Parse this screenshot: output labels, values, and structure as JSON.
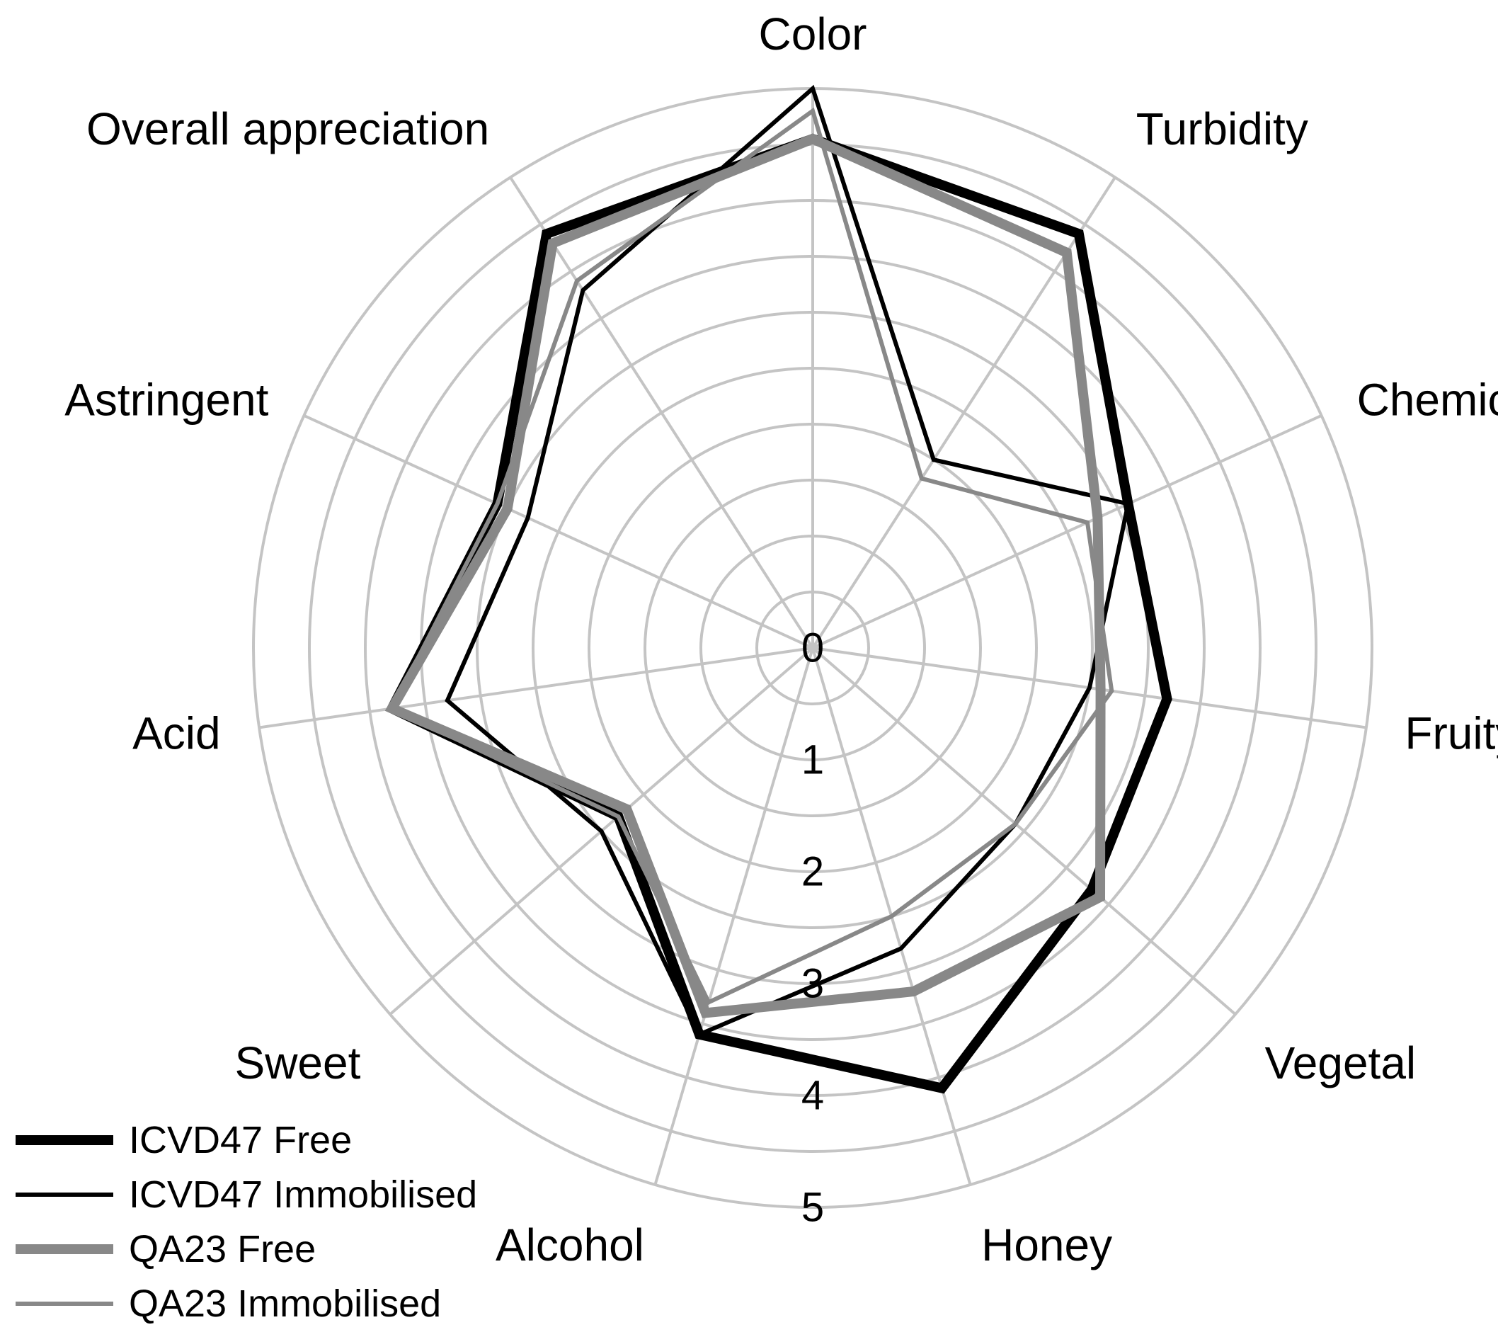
{
  "chart_data": {
    "type": "radar",
    "axes": [
      "Color",
      "Turbidity",
      "Chemical",
      "Fruity",
      "Vegetal",
      "Honey",
      "Alcohol",
      "Sweet",
      "Acid",
      "Astringent",
      "Overall appreciation"
    ],
    "ticks": [
      "0",
      "1",
      "2",
      "3",
      "4",
      "5"
    ],
    "rlim": [
      0,
      5
    ],
    "grid_step": 0.5,
    "grid": true,
    "legend_position": "bottom-left",
    "series": [
      {
        "name": "ICVD47 Free",
        "values": [
          4.55,
          4.4,
          3.1,
          3.2,
          3.3,
          4.1,
          3.6,
          2.3,
          3.8,
          3.1,
          4.4
        ],
        "color": "#000000",
        "line_width": 14
      },
      {
        "name": "ICVD47 Immobilised",
        "values": [
          5.0,
          2.0,
          3.1,
          2.5,
          2.4,
          2.8,
          3.6,
          2.5,
          3.3,
          2.8,
          3.8
        ],
        "color": "#000000",
        "line_width": 6
      },
      {
        "name": "QA23 Free",
        "values": [
          4.55,
          4.2,
          2.8,
          2.6,
          3.4,
          3.2,
          3.4,
          2.2,
          3.8,
          3.0,
          4.3
        ],
        "color": "#888888",
        "line_width": 14
      },
      {
        "name": "QA23 Immobilised",
        "values": [
          4.8,
          1.8,
          2.7,
          2.7,
          2.4,
          2.5,
          3.3,
          2.3,
          3.8,
          3.1,
          3.9
        ],
        "color": "#888888",
        "line_width": 6
      }
    ]
  }
}
